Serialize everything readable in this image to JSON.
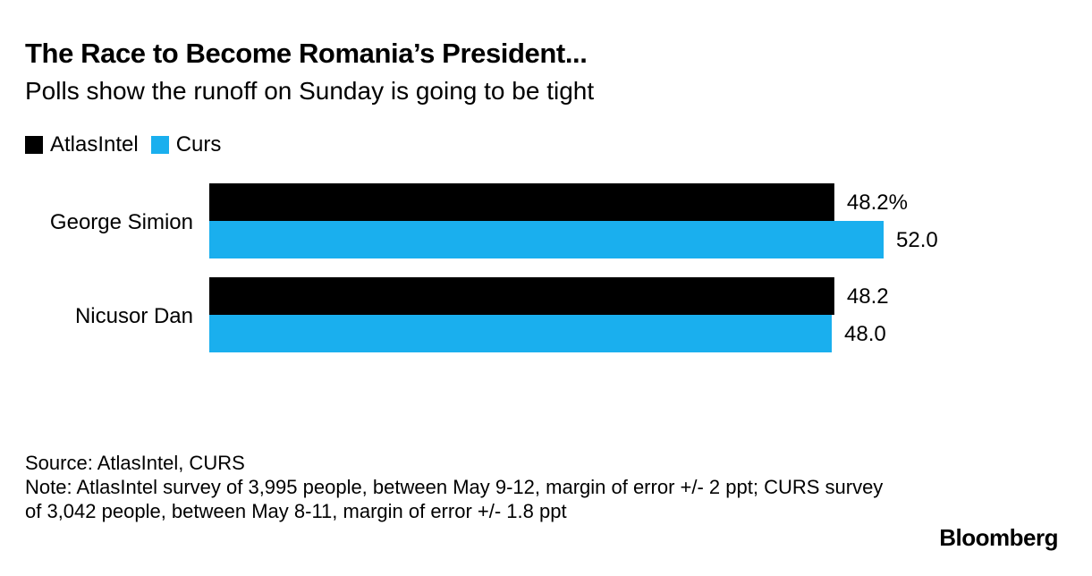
{
  "header": {
    "title": "The Race to Become Romania’s President...",
    "subtitle": "Polls show the runoff on Sunday is going to be tight"
  },
  "legend": {
    "items": [
      {
        "label": "AtlasIntel",
        "color": "#000000"
      },
      {
        "label": "Curs",
        "color": "#1aafee"
      }
    ]
  },
  "chart_data": {
    "type": "bar",
    "orientation": "horizontal",
    "categories": [
      "George Simion",
      "Nicusor Dan"
    ],
    "series": [
      {
        "name": "AtlasIntel",
        "color": "#000000",
        "values": [
          48.2,
          48.2
        ],
        "labels": [
          "48.2%",
          "48.2"
        ]
      },
      {
        "name": "Curs",
        "color": "#1aafee",
        "values": [
          52.0,
          48.0
        ],
        "labels": [
          "52.0",
          "48.0"
        ]
      }
    ],
    "xlim": [
      0,
      52
    ],
    "grid": false,
    "legend_position": "top-left"
  },
  "footer": {
    "source": "Source: AtlasIntel, CURS",
    "note": "Note: AtlasIntel survey of 3,995 people, between May 9-12, margin of error +/- 2 ppt; CURS survey of 3,042 people, between May 8-11, margin of error +/- 1.8 ppt"
  },
  "brand": "Bloomberg"
}
